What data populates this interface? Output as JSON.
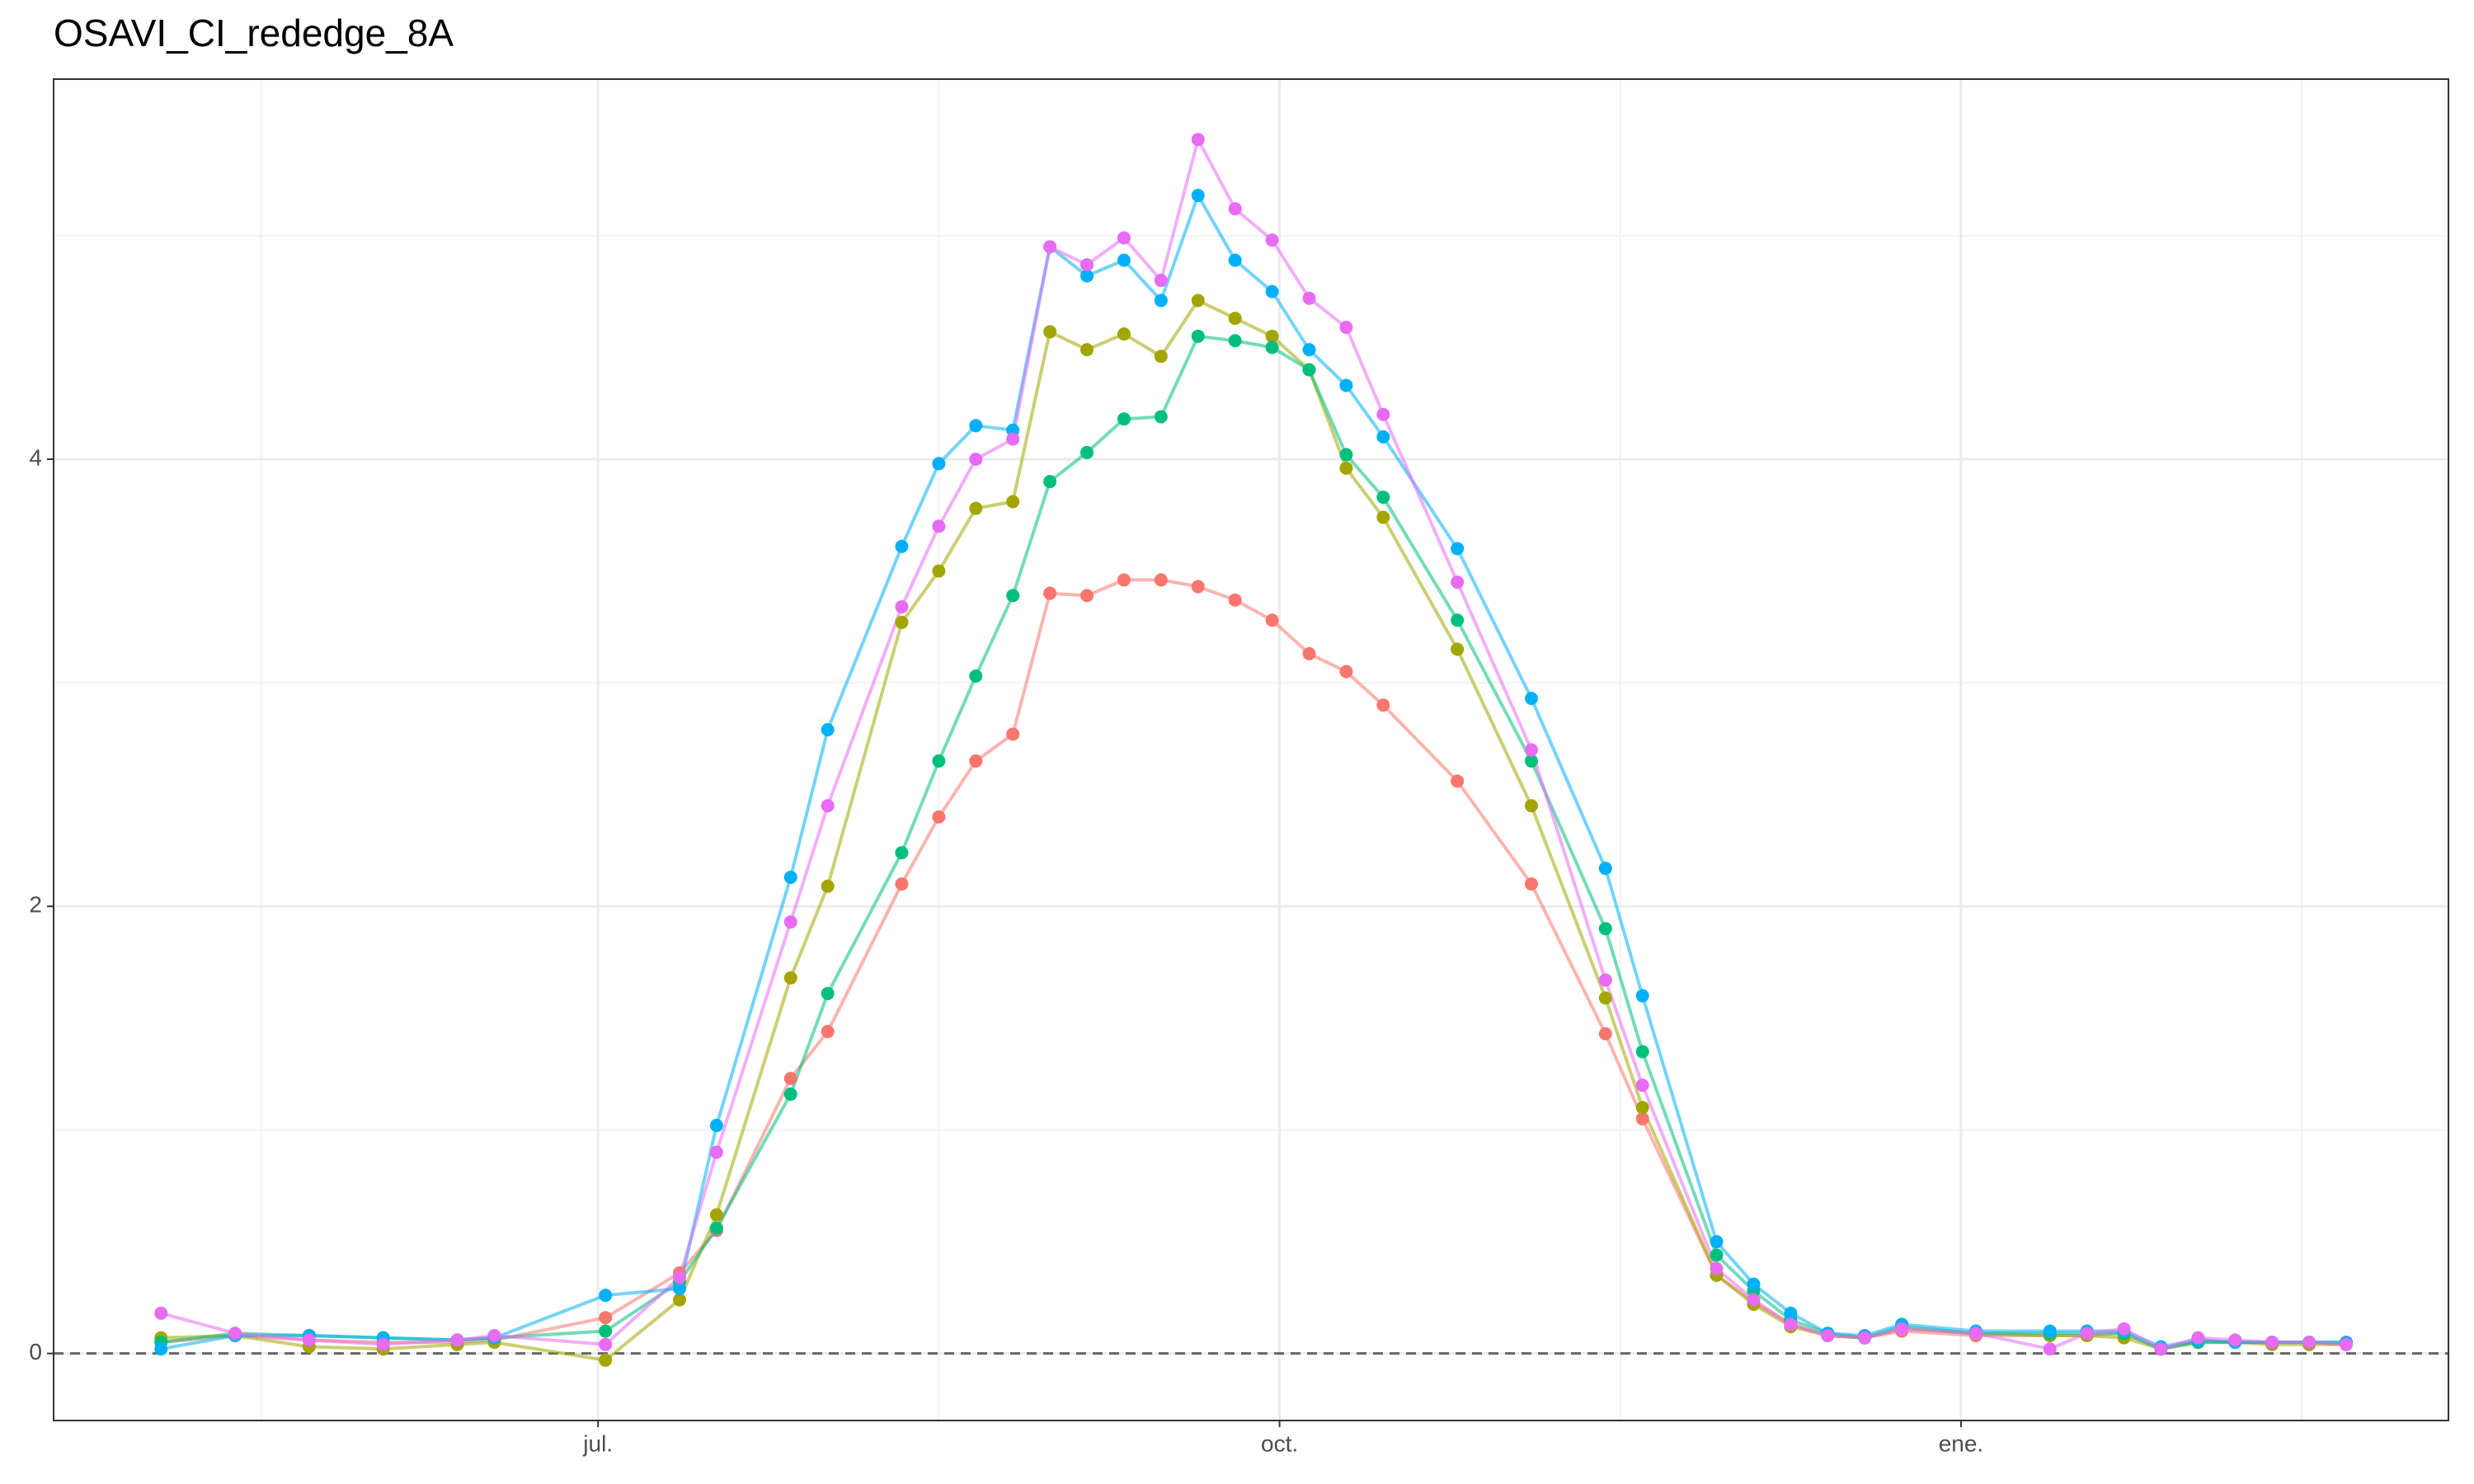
{
  "chart_data": {
    "type": "line",
    "title": "OSAVI_CI_rededge_8A",
    "x": [
      -59,
      -49,
      -39,
      -29,
      -19,
      -14,
      1,
      11,
      16,
      26,
      31,
      41,
      46,
      51,
      56,
      61,
      66,
      71,
      76,
      81,
      86,
      91,
      96,
      101,
      106,
      116,
      126,
      136,
      141,
      151,
      156,
      161,
      166,
      171,
      176,
      186,
      196,
      201,
      206,
      211,
      216,
      221,
      226,
      231,
      236
    ],
    "xlim": [
      -73.5,
      249.8
    ],
    "xticks": [
      {
        "value": 0,
        "label": "jul."
      },
      {
        "value": 92,
        "label": "oct."
      },
      {
        "value": 184,
        "label": "ene."
      }
    ],
    "xminor": [
      -45.5,
      46,
      138,
      230
    ],
    "ylim": [
      -0.3,
      5.7
    ],
    "yticks": [
      0,
      2,
      4
    ],
    "yminor": [
      1,
      3,
      5
    ],
    "hline": 0,
    "grid": true,
    "series": [
      {
        "color": "#F8766D",
        "values": [
          0.05,
          0.08,
          0.06,
          0.05,
          0.05,
          0.06,
          0.16,
          0.36,
          0.55,
          1.23,
          1.44,
          2.1,
          2.4,
          2.65,
          2.77,
          3.4,
          3.39,
          3.46,
          3.46,
          3.43,
          3.37,
          3.28,
          3.13,
          3.05,
          2.9,
          2.56,
          2.1,
          1.43,
          1.05,
          0.35,
          0.23,
          0.13,
          0.08,
          0.07,
          0.1,
          0.08,
          0.08,
          0.08,
          0.09,
          0.02,
          0.06,
          0.05,
          0.05,
          0.05,
          0.04
        ]
      },
      {
        "color": "#A3A500",
        "values": [
          0.07,
          0.08,
          0.03,
          0.02,
          0.04,
          0.05,
          -0.03,
          0.24,
          0.62,
          1.68,
          2.09,
          3.27,
          3.5,
          3.78,
          3.81,
          4.57,
          4.49,
          4.56,
          4.46,
          4.71,
          4.63,
          4.55,
          4.4,
          3.96,
          3.74,
          3.15,
          2.45,
          1.59,
          1.1,
          0.35,
          0.22,
          0.12,
          0.08,
          0.07,
          0.11,
          0.09,
          0.08,
          0.08,
          0.07,
          0.02,
          0.05,
          0.05,
          0.04,
          0.04,
          0.04
        ]
      },
      {
        "color": "#00BF7D",
        "values": [
          0.05,
          0.09,
          0.08,
          0.07,
          0.06,
          0.07,
          0.1,
          0.32,
          0.56,
          1.16,
          1.61,
          2.24,
          2.65,
          3.03,
          3.39,
          3.9,
          4.03,
          4.18,
          4.19,
          4.55,
          4.53,
          4.5,
          4.4,
          4.02,
          3.83,
          3.28,
          2.65,
          1.9,
          1.35,
          0.44,
          0.28,
          0.15,
          0.09,
          0.07,
          0.12,
          0.09,
          0.09,
          0.09,
          0.09,
          0.02,
          0.05,
          0.05,
          0.05,
          0.05,
          0.05
        ]
      },
      {
        "color": "#00B0F6",
        "values": [
          0.02,
          0.08,
          0.08,
          0.07,
          0.06,
          0.07,
          0.26,
          0.29,
          1.02,
          2.13,
          2.79,
          3.61,
          3.98,
          4.15,
          4.13,
          4.95,
          4.82,
          4.89,
          4.71,
          5.18,
          4.89,
          4.75,
          4.49,
          4.33,
          4.1,
          3.6,
          2.93,
          2.17,
          1.6,
          0.5,
          0.31,
          0.18,
          0.09,
          0.08,
          0.13,
          0.1,
          0.1,
          0.1,
          0.1,
          0.03,
          0.06,
          0.05,
          0.05,
          0.05,
          0.05
        ]
      },
      {
        "color": "#E76BF3",
        "values": [
          0.18,
          0.09,
          0.06,
          0.04,
          0.06,
          0.08,
          0.04,
          0.34,
          0.9,
          1.93,
          2.45,
          3.34,
          3.7,
          4.0,
          4.09,
          4.95,
          4.87,
          4.99,
          4.8,
          5.43,
          5.12,
          4.98,
          4.72,
          4.59,
          4.2,
          3.45,
          2.7,
          1.67,
          1.2,
          0.38,
          0.24,
          0.13,
          0.08,
          0.07,
          0.11,
          0.09,
          0.02,
          0.09,
          0.11,
          0.02,
          0.07,
          0.06,
          0.05,
          0.05,
          0.04
        ]
      }
    ]
  }
}
